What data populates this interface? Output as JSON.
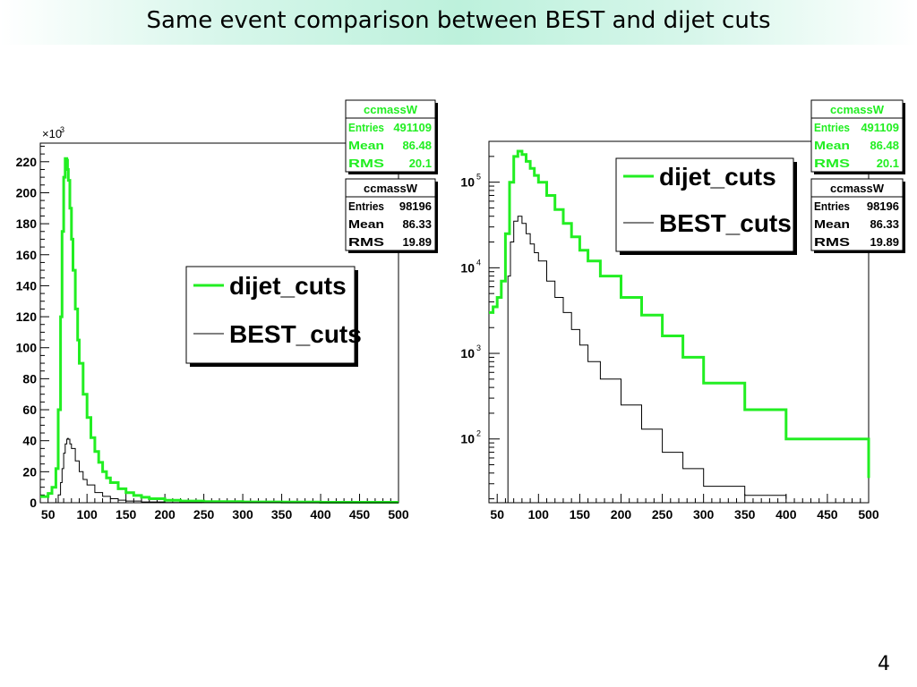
{
  "slide": {
    "title": "Same event comparison between BEST and dijet cuts",
    "number": "4"
  },
  "colors": {
    "dijet": "#22ee22",
    "best": "#000000"
  },
  "chart_data": [
    {
      "type": "line",
      "title": "",
      "xlabel": "",
      "ylabel": "",
      "xlim": [
        40,
        500
      ],
      "ylim": [
        0,
        232000
      ],
      "y_multiplier_label": "×10",
      "y_multiplier_exp": "3",
      "xticks": [
        "50",
        "100",
        "150",
        "200",
        "250",
        "300",
        "350",
        "400",
        "450",
        "500"
      ],
      "yticks": [
        "0",
        "20",
        "40",
        "60",
        "80",
        "100",
        "120",
        "140",
        "160",
        "180",
        "200",
        "220"
      ],
      "legend": {
        "placement": "center",
        "entries": [
          "dijet_cuts",
          "BEST_cuts"
        ]
      },
      "stats": [
        {
          "name": "ccmassW",
          "rows": [
            [
              "Entries",
              "491109"
            ],
            [
              "Mean",
              "86.48"
            ],
            [
              "RMS",
              "20.1"
            ]
          ]
        },
        {
          "name": "ccmassW",
          "rows": [
            [
              "Entries",
              "98196"
            ],
            [
              "Mean",
              "86.33"
            ],
            [
              "RMS",
              "19.89"
            ]
          ]
        }
      ],
      "series": [
        {
          "name": "dijet_cuts",
          "x": [
            40,
            50,
            55,
            60,
            63,
            66,
            68,
            70,
            72,
            74,
            75,
            76,
            78,
            80,
            82,
            85,
            88,
            90,
            95,
            100,
            105,
            110,
            115,
            120,
            125,
            130,
            140,
            150,
            160,
            170,
            180,
            200,
            220,
            250,
            300,
            350,
            400,
            450,
            500
          ],
          "y": [
            4000,
            6000,
            10000,
            22000,
            60000,
            120000,
            175000,
            210000,
            222000,
            221000,
            215000,
            208000,
            190000,
            170000,
            150000,
            125000,
            105000,
            90000,
            70000,
            55000,
            42000,
            33000,
            26000,
            20000,
            16000,
            13000,
            9000,
            6500,
            4700,
            3500,
            2600,
            1600,
            1100,
            700,
            500,
            400,
            300,
            300,
            300
          ]
        },
        {
          "name": "BEST_cuts",
          "x": [
            60,
            63,
            66,
            68,
            70,
            72,
            74,
            75,
            76,
            78,
            80,
            85,
            90,
            95,
            100,
            110,
            120,
            130,
            140,
            150,
            170,
            200,
            250,
            300,
            350,
            400,
            500
          ],
          "y": [
            0,
            5000,
            13000,
            22000,
            32000,
            38000,
            41000,
            41500,
            41000,
            38000,
            35000,
            27000,
            20000,
            15000,
            11500,
            6600,
            4100,
            2600,
            1700,
            1100,
            500,
            200,
            80,
            40,
            20,
            10,
            0
          ]
        }
      ]
    },
    {
      "type": "line",
      "title": "",
      "xlabel": "",
      "ylabel": "",
      "scale": "log",
      "xlim": [
        40,
        500
      ],
      "ylim": [
        18,
        300000
      ],
      "xticks": [
        "50",
        "100",
        "150",
        "200",
        "250",
        "300",
        "350",
        "400",
        "450",
        "500"
      ],
      "ytick_values": [
        100,
        1000,
        10000,
        100000
      ],
      "ytick_base": "10",
      "ytick_exps": [
        "2",
        "3",
        "4",
        "5"
      ],
      "legend": {
        "placement": "top-right",
        "entries": [
          "dijet_cuts",
          "BEST_cuts"
        ]
      },
      "stats": [
        {
          "name": "ccmassW",
          "rows": [
            [
              "Entries",
              "491109"
            ],
            [
              "Mean",
              "86.48"
            ],
            [
              "RMS",
              "20.1"
            ]
          ]
        },
        {
          "name": "ccmassW",
          "rows": [
            [
              "Entries",
              "98196"
            ],
            [
              "Mean",
              "86.33"
            ],
            [
              "RMS",
              "19.89"
            ]
          ]
        }
      ],
      "series": [
        {
          "name": "dijet_cuts",
          "x": [
            40,
            45,
            50,
            55,
            60,
            65,
            70,
            75,
            80,
            85,
            90,
            95,
            100,
            110,
            120,
            130,
            140,
            150,
            160,
            175,
            200,
            225,
            250,
            275,
            300,
            350,
            400,
            500
          ],
          "y": [
            3000,
            3500,
            4500,
            7000,
            25000,
            100000,
            200000,
            230000,
            210000,
            175000,
            145000,
            120000,
            100000,
            70000,
            48000,
            33000,
            23000,
            16000,
            12000,
            8000,
            4500,
            2800,
            1600,
            900,
            450,
            220,
            100,
            35
          ]
        },
        {
          "name": "BEST_cuts",
          "x": [
            60,
            63,
            66,
            70,
            75,
            80,
            85,
            90,
            95,
            100,
            110,
            120,
            130,
            140,
            150,
            160,
            175,
            200,
            225,
            250,
            275,
            300,
            350,
            400
          ],
          "y": [
            18,
            8000,
            20000,
            35000,
            40000,
            33000,
            25000,
            19000,
            15000,
            12000,
            7000,
            4500,
            3000,
            1900,
            1250,
            800,
            500,
            250,
            130,
            70,
            45,
            28,
            22,
            20
          ]
        }
      ]
    }
  ]
}
